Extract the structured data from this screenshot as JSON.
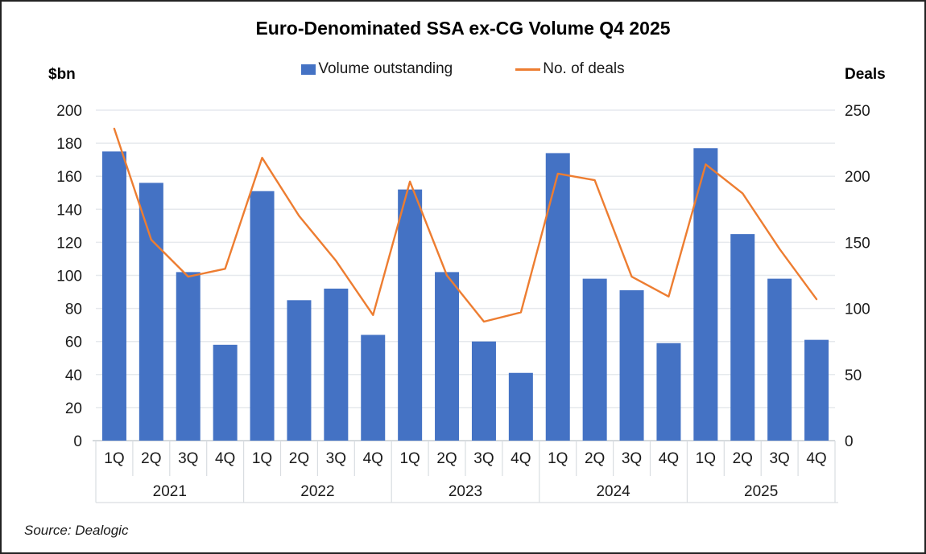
{
  "title": "Euro-Denominated SSA ex-CG Volume Q4 2025",
  "legend": {
    "volume": "Volume outstanding",
    "deals": "No. of deals"
  },
  "axis_units": {
    "left": "$bn",
    "right": "Deals"
  },
  "source": "Source: Dealogic",
  "colors": {
    "bar": "#4472C4",
    "line": "#ED7D31",
    "gridline": "#E6E9ED",
    "axis_line": "#C9CDD2",
    "separator": "#D9DDE1",
    "text": "#1a1a1a"
  },
  "chart_data": {
    "type": "bar",
    "subtype": "combo-bar-line",
    "title": "Euro-Denominated SSA ex-CG Volume Q4 2025",
    "quarters": [
      "1Q",
      "2Q",
      "3Q",
      "4Q"
    ],
    "years": [
      "2021",
      "2022",
      "2023",
      "2024",
      "2025"
    ],
    "categories": [
      "1Q 2021",
      "2Q 2021",
      "3Q 2021",
      "4Q 2021",
      "1Q 2022",
      "2Q 2022",
      "3Q 2022",
      "4Q 2022",
      "1Q 2023",
      "2Q 2023",
      "3Q 2023",
      "4Q 2023",
      "1Q 2024",
      "2Q 2024",
      "3Q 2024",
      "4Q 2024",
      "1Q 2025",
      "2Q 2025",
      "3Q 2025",
      "4Q 2025"
    ],
    "left_axis": {
      "label": "$bn",
      "min": 0,
      "max": 200,
      "step": 20
    },
    "right_axis": {
      "label": "Deals",
      "min": 0,
      "max": 250,
      "step": 50
    },
    "grid": true,
    "legend_position": "top",
    "series": [
      {
        "name": "Volume outstanding",
        "type": "bar",
        "axis": "left",
        "color": "#4472C4",
        "values": [
          175,
          156,
          102,
          58,
          151,
          85,
          92,
          64,
          152,
          102,
          60,
          41,
          174,
          98,
          91,
          59,
          177,
          125,
          98,
          61
        ]
      },
      {
        "name": "No. of deals",
        "type": "line",
        "axis": "right",
        "color": "#ED7D31",
        "values": [
          236,
          152,
          124,
          130,
          214,
          170,
          136,
          95,
          196,
          125,
          90,
          97,
          202,
          197,
          124,
          109,
          209,
          187,
          145,
          107
        ]
      }
    ]
  }
}
